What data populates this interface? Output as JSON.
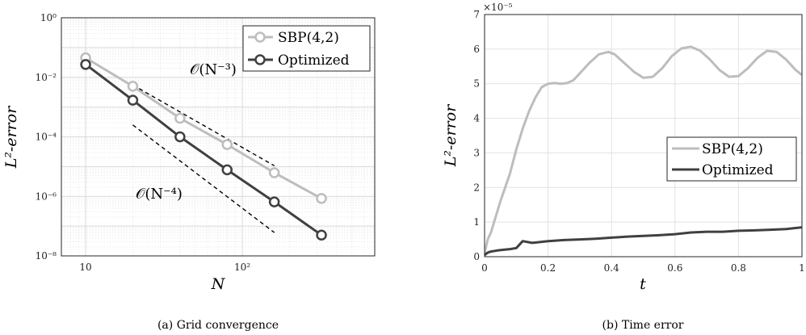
{
  "chart_data": [
    {
      "type": "line",
      "subfigure": "(a)",
      "caption": "(a) Grid convergence",
      "xlabel": "N",
      "ylabel": "L²-error",
      "xscale": "log",
      "yscale": "log",
      "xlim": [
        7,
        700
      ],
      "ylim": [
        1e-08,
        1
      ],
      "x_ticks": [
        "10",
        "10²"
      ],
      "y_ticks": [
        "10⁰",
        "10⁻²",
        "10⁻⁴",
        "10⁻⁶",
        "10⁻⁸"
      ],
      "grid": true,
      "legend_position": "top-right",
      "x": [
        10,
        20,
        40,
        80,
        160,
        320
      ],
      "series": [
        {
          "name": "SBP(4,2)",
          "color": "#bdbdbd",
          "marker": "circle",
          "values": [
            0.045,
            0.005,
            0.00042,
            5.5e-05,
            6.2e-06,
            8.5e-07
          ]
        },
        {
          "name": "Optimized",
          "color": "#404040",
          "marker": "circle",
          "values": [
            0.027,
            0.0017,
            0.0001,
            7.8e-06,
            6.5e-07,
            5e-08
          ]
        }
      ],
      "reference_lines": [
        {
          "label": "𝒪(N⁻³)",
          "x": [
            20,
            160
          ],
          "y": [
            0.0055,
            1.07e-05
          ]
        },
        {
          "label": "𝒪(N⁻⁴)",
          "x": [
            20,
            160
          ],
          "y": [
            0.00025,
            6.1e-08
          ]
        }
      ]
    },
    {
      "type": "line",
      "subfigure": "(b)",
      "caption": "(b) Time error",
      "xlabel": "t",
      "ylabel": "L²-error",
      "xlim": [
        0,
        1
      ],
      "ylim": [
        0,
        7
      ],
      "y_multiplier": "×10⁻⁵",
      "x_ticks": [
        "0",
        "0.2",
        "0.4",
        "0.6",
        "0.8",
        "1"
      ],
      "y_ticks": [
        "0",
        "1",
        "2",
        "3",
        "4",
        "5",
        "6",
        "7"
      ],
      "grid": true,
      "legend_position": "center-right",
      "series": [
        {
          "name": "SBP(4,2)",
          "color": "#bdbdbd",
          "x": [
            0,
            0.01,
            0.02,
            0.03,
            0.05,
            0.08,
            0.1,
            0.12,
            0.14,
            0.16,
            0.18,
            0.2,
            0.22,
            0.24,
            0.26,
            0.28,
            0.3,
            0.33,
            0.36,
            0.39,
            0.41,
            0.44,
            0.47,
            0.5,
            0.53,
            0.56,
            0.59,
            0.62,
            0.65,
            0.68,
            0.71,
            0.74,
            0.77,
            0.8,
            0.83,
            0.86,
            0.89,
            0.92,
            0.95,
            0.98,
            1.0
          ],
          "values": [
            0.1,
            0.5,
            0.7,
            1.0,
            1.6,
            2.4,
            3.1,
            3.7,
            4.2,
            4.6,
            4.9,
            5.0,
            5.02,
            5.0,
            5.02,
            5.1,
            5.3,
            5.6,
            5.85,
            5.92,
            5.85,
            5.6,
            5.35,
            5.17,
            5.2,
            5.45,
            5.8,
            6.02,
            6.07,
            5.95,
            5.7,
            5.4,
            5.2,
            5.22,
            5.45,
            5.75,
            5.95,
            5.92,
            5.7,
            5.4,
            5.25
          ]
        },
        {
          "name": "Optimized",
          "color": "#404040",
          "x": [
            0,
            0.01,
            0.02,
            0.04,
            0.06,
            0.08,
            0.1,
            0.12,
            0.15,
            0.2,
            0.25,
            0.3,
            0.35,
            0.4,
            0.45,
            0.5,
            0.55,
            0.6,
            0.65,
            0.7,
            0.75,
            0.8,
            0.85,
            0.9,
            0.95,
            1.0
          ],
          "values": [
            0.05,
            0.12,
            0.15,
            0.18,
            0.2,
            0.22,
            0.25,
            0.45,
            0.4,
            0.45,
            0.48,
            0.5,
            0.52,
            0.55,
            0.58,
            0.6,
            0.62,
            0.65,
            0.7,
            0.72,
            0.72,
            0.75,
            0.76,
            0.78,
            0.8,
            0.85
          ]
        }
      ]
    }
  ]
}
